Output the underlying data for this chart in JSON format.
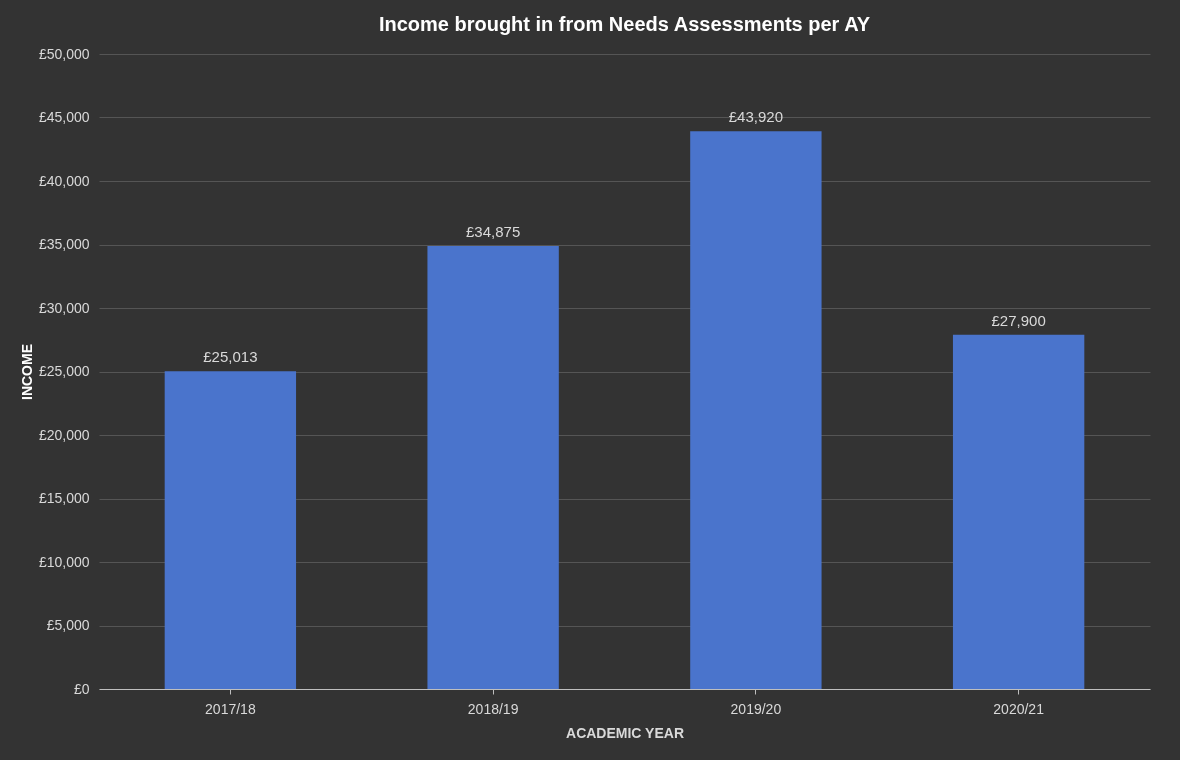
{
  "chart_data": {
    "type": "bar",
    "title": "Income brought in from Needs Assessments  per AY",
    "xlabel": "ACADEMIC YEAR",
    "ylabel": "INCOME",
    "categories": [
      "2017/18",
      "2018/19",
      "2019/20",
      "2020/21"
    ],
    "values": [
      25013,
      34875,
      43920,
      27900
    ],
    "value_labels": [
      "£25,013",
      "£34,875",
      "£43,920",
      "£27,900"
    ],
    "color": "#4a74cc",
    "ylim": [
      0,
      50000
    ],
    "yticks": [
      {
        "value": 0,
        "label": "£0"
      },
      {
        "value": 5000,
        "label": "£5,000"
      },
      {
        "value": 10000,
        "label": "£10,000"
      },
      {
        "value": 15000,
        "label": "£15,000"
      },
      {
        "value": 20000,
        "label": "£20,000"
      },
      {
        "value": 25000,
        "label": "£25,000"
      },
      {
        "value": 30000,
        "label": "£30,000"
      },
      {
        "value": 35000,
        "label": "£35,000"
      },
      {
        "value": 40000,
        "label": "£40,000"
      },
      {
        "value": 45000,
        "label": "£45,000"
      },
      {
        "value": 50000,
        "label": "£50,000"
      }
    ],
    "grid": "y"
  }
}
